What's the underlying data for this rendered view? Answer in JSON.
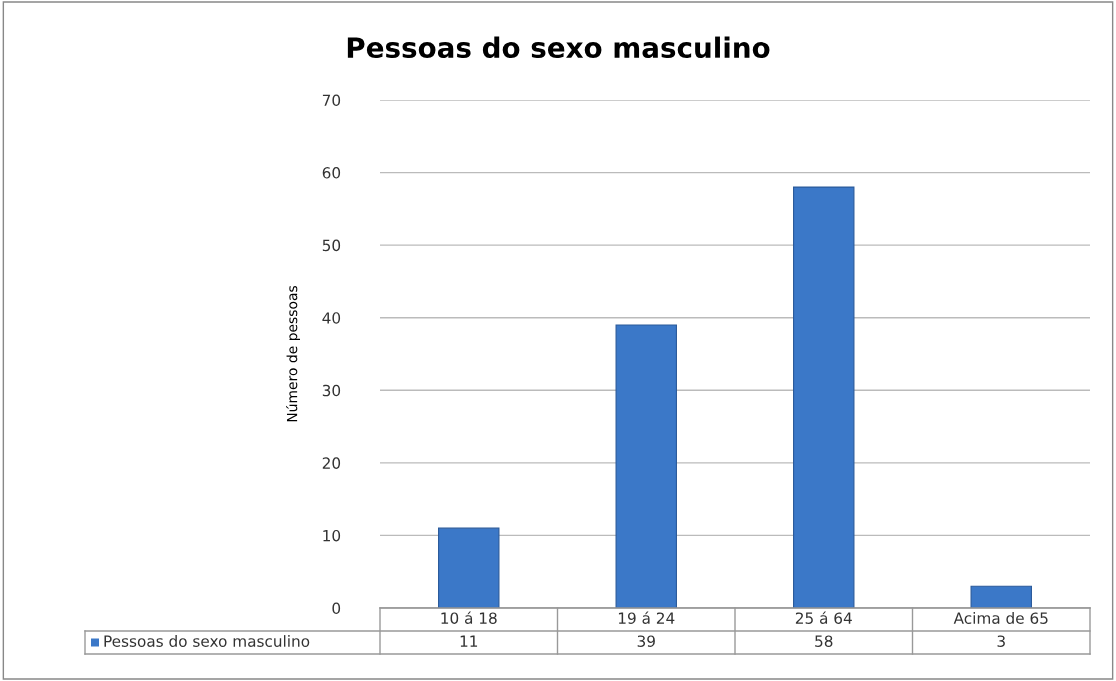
{
  "chart_data": {
    "type": "bar",
    "title": "Pessoas do sexo masculino",
    "ylabel": "Número de pessoas",
    "categories": [
      "10 á 18",
      "19 á 24",
      "25 á 64",
      "Acima de 65"
    ],
    "series": [
      {
        "name": "Pessoas do sexo masculino",
        "color": "#3b78c8",
        "values": [
          11,
          39,
          58,
          3
        ]
      }
    ],
    "ylim": [
      0,
      70
    ],
    "yticks": [
      0,
      10,
      20,
      30,
      40,
      50,
      60,
      70
    ],
    "grid": "y",
    "legend": "bottom",
    "data_labels": true
  }
}
